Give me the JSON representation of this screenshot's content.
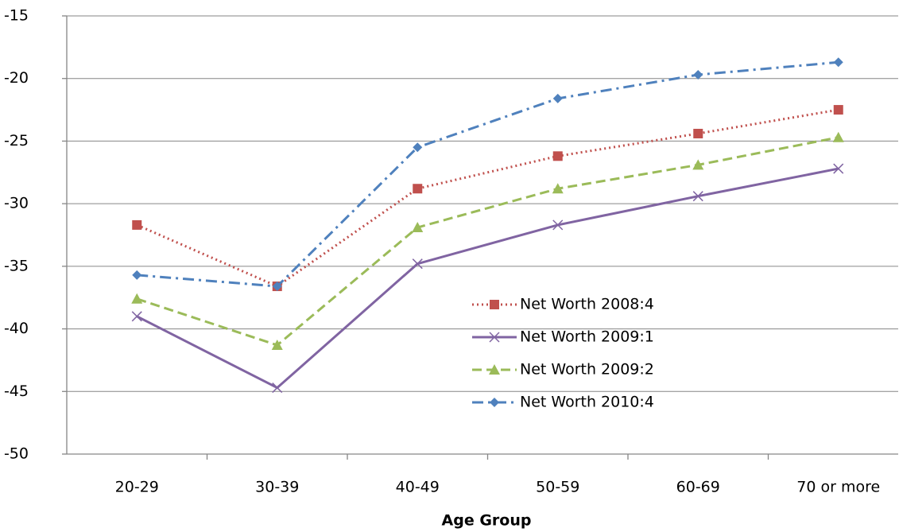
{
  "chart_data": {
    "type": "line",
    "x_label": "Age Group",
    "categories": [
      "20-29",
      "30-39",
      "40-49",
      "50-59",
      "60-69",
      "70 or more"
    ],
    "ylim": [
      -50,
      -15
    ],
    "yticks": [
      -50,
      -45,
      -40,
      -35,
      -30,
      -25,
      -20,
      -15
    ],
    "grid": true,
    "series": [
      {
        "name": "Net Worth 2008:4",
        "color": "#c0504d",
        "line_style": "dotted",
        "marker": "square",
        "values": [
          -31.7,
          -36.6,
          -28.8,
          -26.2,
          -24.4,
          -22.5
        ]
      },
      {
        "name": "Net Worth 2009:1",
        "color": "#8064a2",
        "line_style": "solid",
        "marker": "x",
        "values": [
          -39.0,
          -44.7,
          -34.8,
          -31.7,
          -29.4,
          -27.2
        ]
      },
      {
        "name": "Net Worth 2009:2",
        "color": "#9bbb59",
        "line_style": "dashed",
        "marker": "triangle",
        "values": [
          -37.6,
          -41.3,
          -31.9,
          -28.8,
          -26.9,
          -24.7
        ]
      },
      {
        "name": "Net Worth 2010:4",
        "color": "#4f81bd",
        "line_style": "dash-dot",
        "marker": "diamond",
        "values": [
          -35.7,
          -36.6,
          -25.5,
          -21.6,
          -19.7,
          -18.7
        ]
      }
    ]
  }
}
